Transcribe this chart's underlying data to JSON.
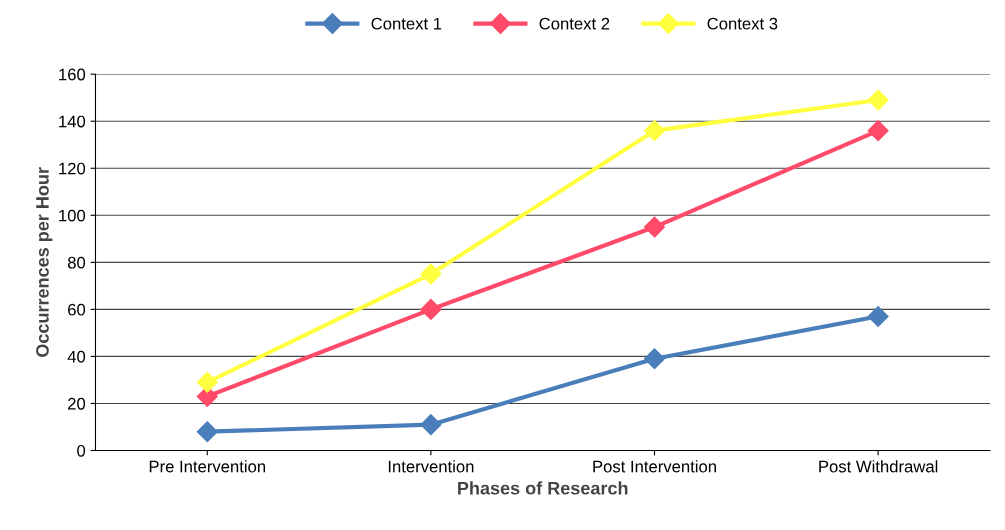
{
  "chart_data": {
    "type": "line",
    "xlabel": "Phases of Research",
    "ylabel": "Occurrences per Hour",
    "categories": [
      "Pre Intervention",
      "Intervention",
      "Post Intervention",
      "Post Withdrawal"
    ],
    "series": [
      {
        "name": "Context 1",
        "color": "#4a7ebb",
        "values": [
          8,
          11,
          39,
          57
        ]
      },
      {
        "name": "Context 2",
        "color": "#ff4a6a",
        "values": [
          23,
          60,
          95,
          136
        ]
      },
      {
        "name": "Context 3",
        "color": "#ffff40",
        "values": [
          29,
          75,
          136,
          149
        ]
      }
    ],
    "ylim": [
      0,
      160
    ],
    "yticks": [
      0,
      20,
      40,
      60,
      80,
      100,
      120,
      140,
      160
    ],
    "grid": "y",
    "legend": "top",
    "marker": "diamond",
    "line_style": "solid"
  }
}
